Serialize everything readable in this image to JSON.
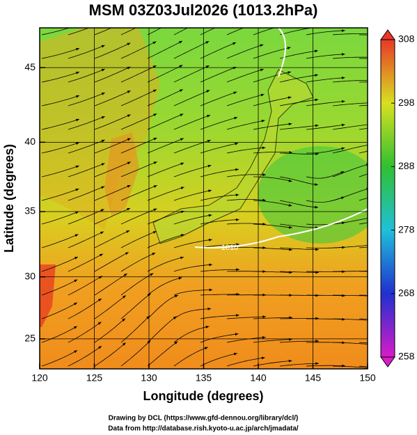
{
  "chart_data": {
    "type": "map",
    "title": "MSM 03Z03Jul2026 (1013.2hPa)",
    "x_label": "Longitude (degrees)",
    "y_label": "Latitude  (degrees)",
    "xlim": [
      120,
      150
    ],
    "xticks": [
      120,
      125,
      130,
      135,
      140,
      145,
      150
    ],
    "ylim": [
      22.5,
      47.5
    ],
    "yticks": [
      25,
      30,
      35,
      40,
      45
    ],
    "grid": true,
    "contour_label": "1010",
    "colorbar": {
      "lim": [
        258,
        308
      ],
      "ticks": [
        258,
        268,
        278,
        288,
        298,
        308
      ],
      "colors": [
        "#d81cc8",
        "#2030d0",
        "#20c0d8",
        "#30c030",
        "#d8e020",
        "#e83828"
      ]
    },
    "credits": [
      "Drawing by DCL (https://www.gfd-dennou.org/library/dcl/)",
      "Data from http://database.rish.kyoto-u.ac.jp/arch/jmadata/"
    ]
  }
}
